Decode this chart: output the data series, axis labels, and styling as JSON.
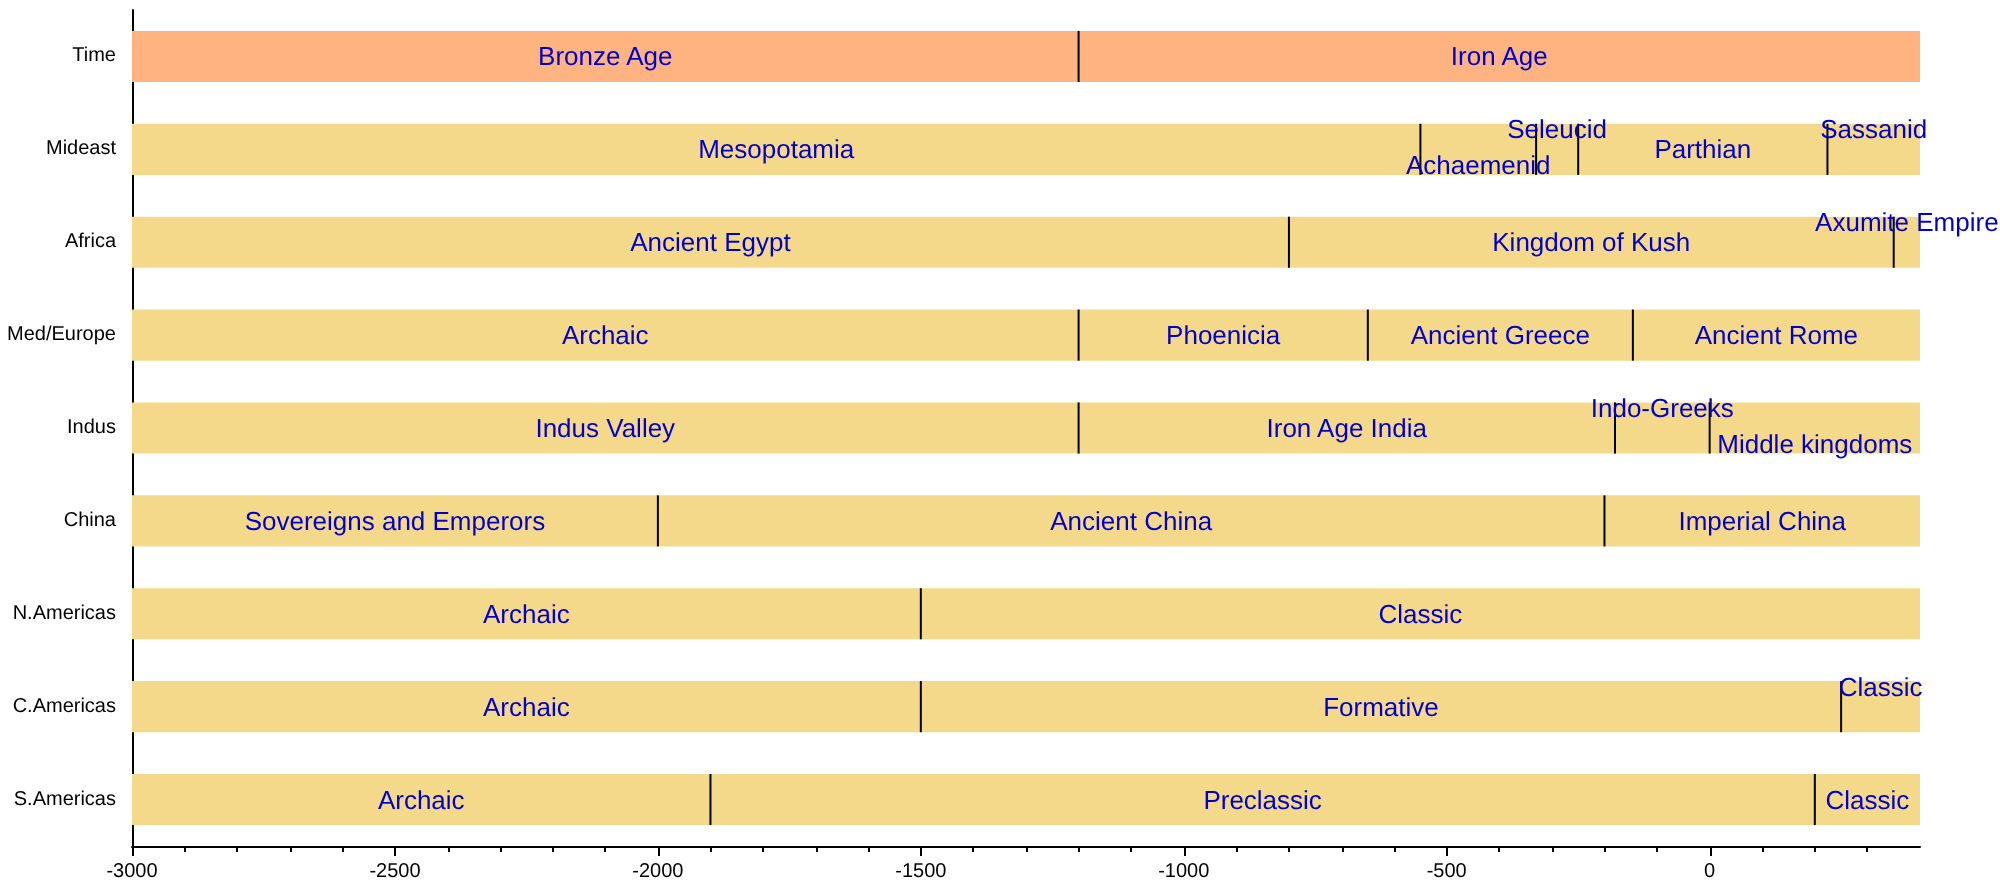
{
  "chart_data": {
    "type": "bar",
    "orientation": "horizontal",
    "categories": [
      "Time",
      "Mideast",
      "Africa",
      "Med/Europe",
      "Indus",
      "China",
      "N.Americas",
      "C.Americas",
      "S.Americas"
    ],
    "xlim": [
      -3000,
      400
    ],
    "xticks": [
      -3000,
      -2500,
      -2000,
      -1500,
      -1000,
      -500,
      0
    ],
    "grid": false,
    "series": [
      {
        "colors": [
          "#ffb380",
          "#f5d98a",
          "#f5d98a",
          "#f5d98a",
          "#f5d98a",
          "#f5d98a",
          "#f5d98a",
          "#f5d98a",
          "#f5d98a"
        ],
        "base": [
          -3000,
          -3000,
          -3000,
          -3000,
          -3000,
          -3000,
          -3000,
          -3000,
          -3000
        ],
        "values": [
          1800,
          2450,
          2200,
          1800,
          1800,
          1000,
          1500,
          1500,
          1100
        ],
        "value_labels": [
          "Bronze Age",
          "Mesopotamia",
          "Ancient Egypt",
          "Archaic",
          "Indus Valley",
          "Sovereigns and Emperors",
          "Archaic",
          "Archaic",
          "Archaic"
        ]
      },
      {
        "colors": [
          "#ffb380",
          "#f5d98a",
          "#f5d98a",
          "#f5d98a",
          "#f5d98a",
          "#f5d98a",
          "#f5d98a",
          "#f5d98a",
          "#f5d98a"
        ],
        "base": [
          -1200,
          -550,
          -800,
          -1200,
          -1200,
          -2000,
          -1500,
          -1500,
          -1900
        ],
        "values": [
          1600,
          220,
          1150,
          550,
          1020,
          1800,
          1900,
          1750,
          2100
        ],
        "value_labels": [
          "Iron Age",
          "Achaemenid",
          "Kingdom of Kush",
          "Phoenicia",
          "Iron Age India",
          "Ancient China",
          "Classic",
          "Formative",
          "Preclassic"
        ]
      },
      {
        "colors": [
          null,
          "#f5d98a",
          "#f5d98a",
          "#f5d98a",
          "#f5d98a",
          "#f5d98a",
          null,
          "#f5d98a",
          "#f5d98a"
        ],
        "base": [
          null,
          -330,
          350,
          -650,
          -180,
          -200,
          null,
          250,
          200
        ],
        "values": [
          null,
          80,
          50,
          504,
          180,
          600,
          null,
          150,
          200
        ],
        "value_labels": [
          null,
          "Seleucid",
          "Axumite Empire",
          "Ancient Greece",
          "Indo-Greeks",
          "Imperial China",
          null,
          "Classic",
          "Classic"
        ]
      },
      {
        "colors": [
          null,
          "#f5d98a",
          null,
          "#f5d98a",
          "#f5d98a",
          null,
          null,
          null,
          null
        ],
        "base": [
          null,
          -250,
          null,
          -146,
          0,
          null,
          null,
          null,
          null
        ],
        "values": [
          null,
          474,
          null,
          546,
          400,
          null,
          null,
          null,
          null
        ],
        "value_labels": [
          null,
          "Parthian",
          null,
          "Ancient Rome",
          "Middle kingdoms",
          null,
          null,
          null,
          null
        ]
      },
      {
        "colors": [
          null,
          "#f5d98a",
          null,
          null,
          null,
          null,
          null,
          null,
          null
        ],
        "base": [
          null,
          224,
          null,
          null,
          null,
          null,
          null,
          null,
          null
        ],
        "values": [
          null,
          176,
          null,
          null,
          null,
          null,
          null,
          null,
          null
        ],
        "value_labels": [
          null,
          "Sassanid",
          null,
          null,
          null,
          null,
          null,
          null,
          null
        ]
      }
    ]
  }
}
